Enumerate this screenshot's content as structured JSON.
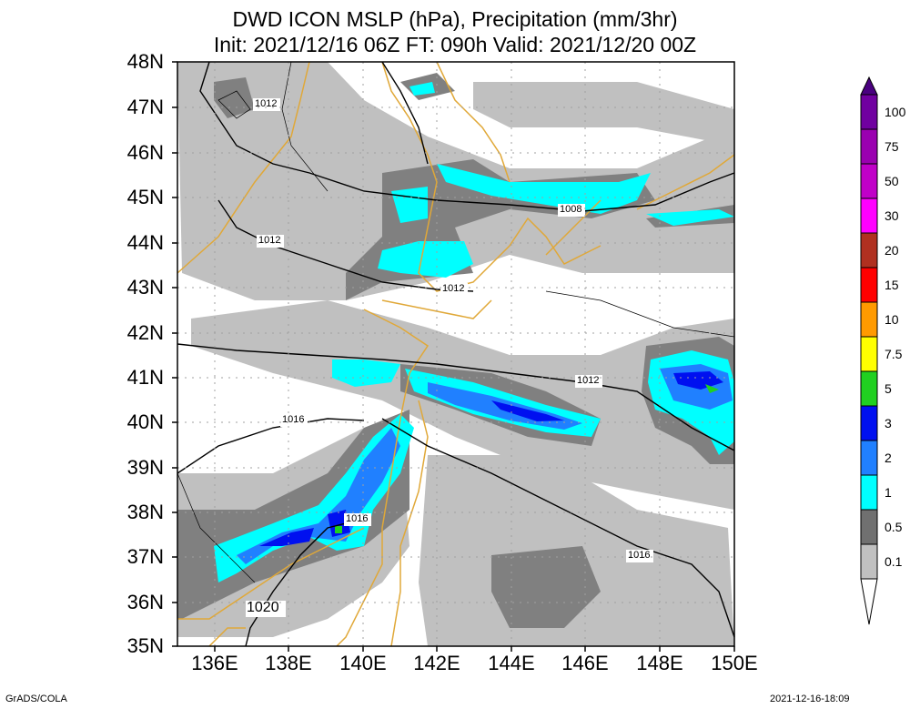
{
  "title": {
    "line1": "DWD ICON MSLP (hPa), Precipitation (mm/3hr)",
    "line2": "Init: 2021/12/16 06Z  FT: 090h  Valid: 2021/12/20 00Z"
  },
  "lat_labels": [
    "48N",
    "47N",
    "46N",
    "45N",
    "44N",
    "43N",
    "42N",
    "41N",
    "40N",
    "39N",
    "38N",
    "37N",
    "36N",
    "35N"
  ],
  "lon_labels": [
    "136E",
    "138E",
    "140E",
    "142E",
    "144E",
    "146E",
    "148E",
    "150E"
  ],
  "isobar_labels": [
    "1012",
    "1012",
    "1012",
    "1012",
    "1008",
    "1016",
    "1016",
    "1016",
    "1020"
  ],
  "colorbar": {
    "labels": [
      "100",
      "75",
      "50",
      "30",
      "20",
      "15",
      "10",
      "7.5",
      "5",
      "3",
      "2",
      "1",
      "0.5",
      "0.1"
    ],
    "colors": [
      "#7000a0",
      "#9a00b0",
      "#c000c8",
      "#ff00ff",
      "#b03020",
      "#ff0000",
      "#ff9a00",
      "#ffff00",
      "#20d020",
      "#0010f0",
      "#2080ff",
      "#00ffff",
      "#707070",
      "#c0c0c0"
    ],
    "top_arrow_color": "#4a0080"
  },
  "colors": {
    "light_precip": "#c0c0c0",
    "medium_precip": "#808080",
    "cyan": "#00ffff",
    "blue": "#2080ff",
    "dark_blue": "#0010f0",
    "coastline": "#e0a838"
  },
  "footer": {
    "left": "GrADS/COLA",
    "right": "2021-12-16-18:09"
  }
}
